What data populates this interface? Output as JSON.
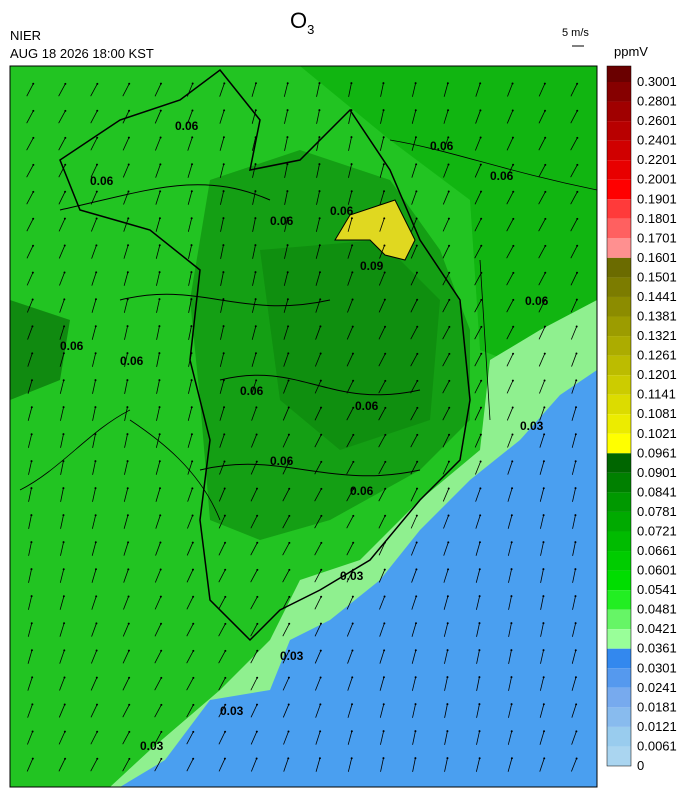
{
  "header": {
    "agency": "NIER",
    "datetime": "AUG 18 2026 18:00 KST",
    "title": {
      "main": "O",
      "subscript": "3"
    },
    "wind_scale": "5 m/s"
  },
  "colorbar": {
    "unit": "ppmV",
    "ticks": [
      0.3001,
      0.2801,
      0.2601,
      0.2401,
      0.2201,
      0.2001,
      0.1901,
      0.1801,
      0.1701,
      0.1601,
      0.1501,
      0.1441,
      0.1381,
      0.1321,
      0.1261,
      0.1201,
      0.1141,
      0.1081,
      0.1021,
      0.0961,
      0.0901,
      0.0841,
      0.0781,
      0.0721,
      0.0661,
      0.0601,
      0.0541,
      0.0481,
      0.0421,
      0.0361,
      0.0301,
      0.0241,
      0.0181,
      0.0121,
      0.0061,
      0
    ],
    "colors": [
      "#6a0000",
      "#860000",
      "#a00000",
      "#b80000",
      "#d00000",
      "#e80000",
      "#ff0000",
      "#ff3a3a",
      "#ff6060",
      "#ff9090",
      "#6b6b00",
      "#7c7c00",
      "#8c8c00",
      "#9c9c00",
      "#acac00",
      "#bcbc00",
      "#cccc00",
      "#dcdc00",
      "#ecec00",
      "#ffff00",
      "#006600",
      "#008000",
      "#009900",
      "#00aa00",
      "#00bb00",
      "#00cc00",
      "#00dd00",
      "#22ee22",
      "#66f566",
      "#99ff99",
      "#3388ee",
      "#5599ee",
      "#77aaee",
      "#88bbee",
      "#99ccee",
      "#aad5f0"
    ]
  },
  "contour_labels": [
    "0.06",
    "0.06",
    "0.06",
    "0.06",
    "0.06",
    "0.06",
    "0.06",
    "0.06",
    "0.06",
    "0.06",
    "0.06",
    "0.06",
    "0.06",
    "0.09",
    "0.03",
    "0.03",
    "0.03",
    "0.03",
    "0.03"
  ]
}
